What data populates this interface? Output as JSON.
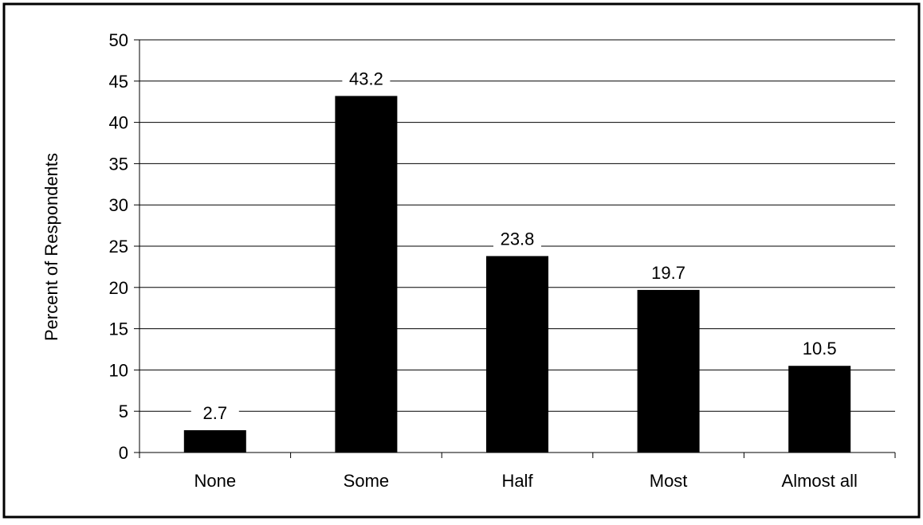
{
  "chart_data": {
    "type": "bar",
    "title": "",
    "xlabel": "",
    "ylabel": "Percent of Respondents",
    "categories": [
      "None",
      "Some",
      "Half",
      "Most",
      "Almost all"
    ],
    "values": [
      2.7,
      43.2,
      23.8,
      19.7,
      10.5
    ],
    "value_labels": [
      "2.7",
      "43.2",
      "23.8",
      "19.7",
      "10.5"
    ],
    "ylim": [
      0,
      50
    ],
    "yticks": [
      0,
      5,
      10,
      15,
      20,
      25,
      30,
      35,
      40,
      45,
      50
    ],
    "grid": "horizontal",
    "legend": "none",
    "bar_color": "#000000"
  }
}
